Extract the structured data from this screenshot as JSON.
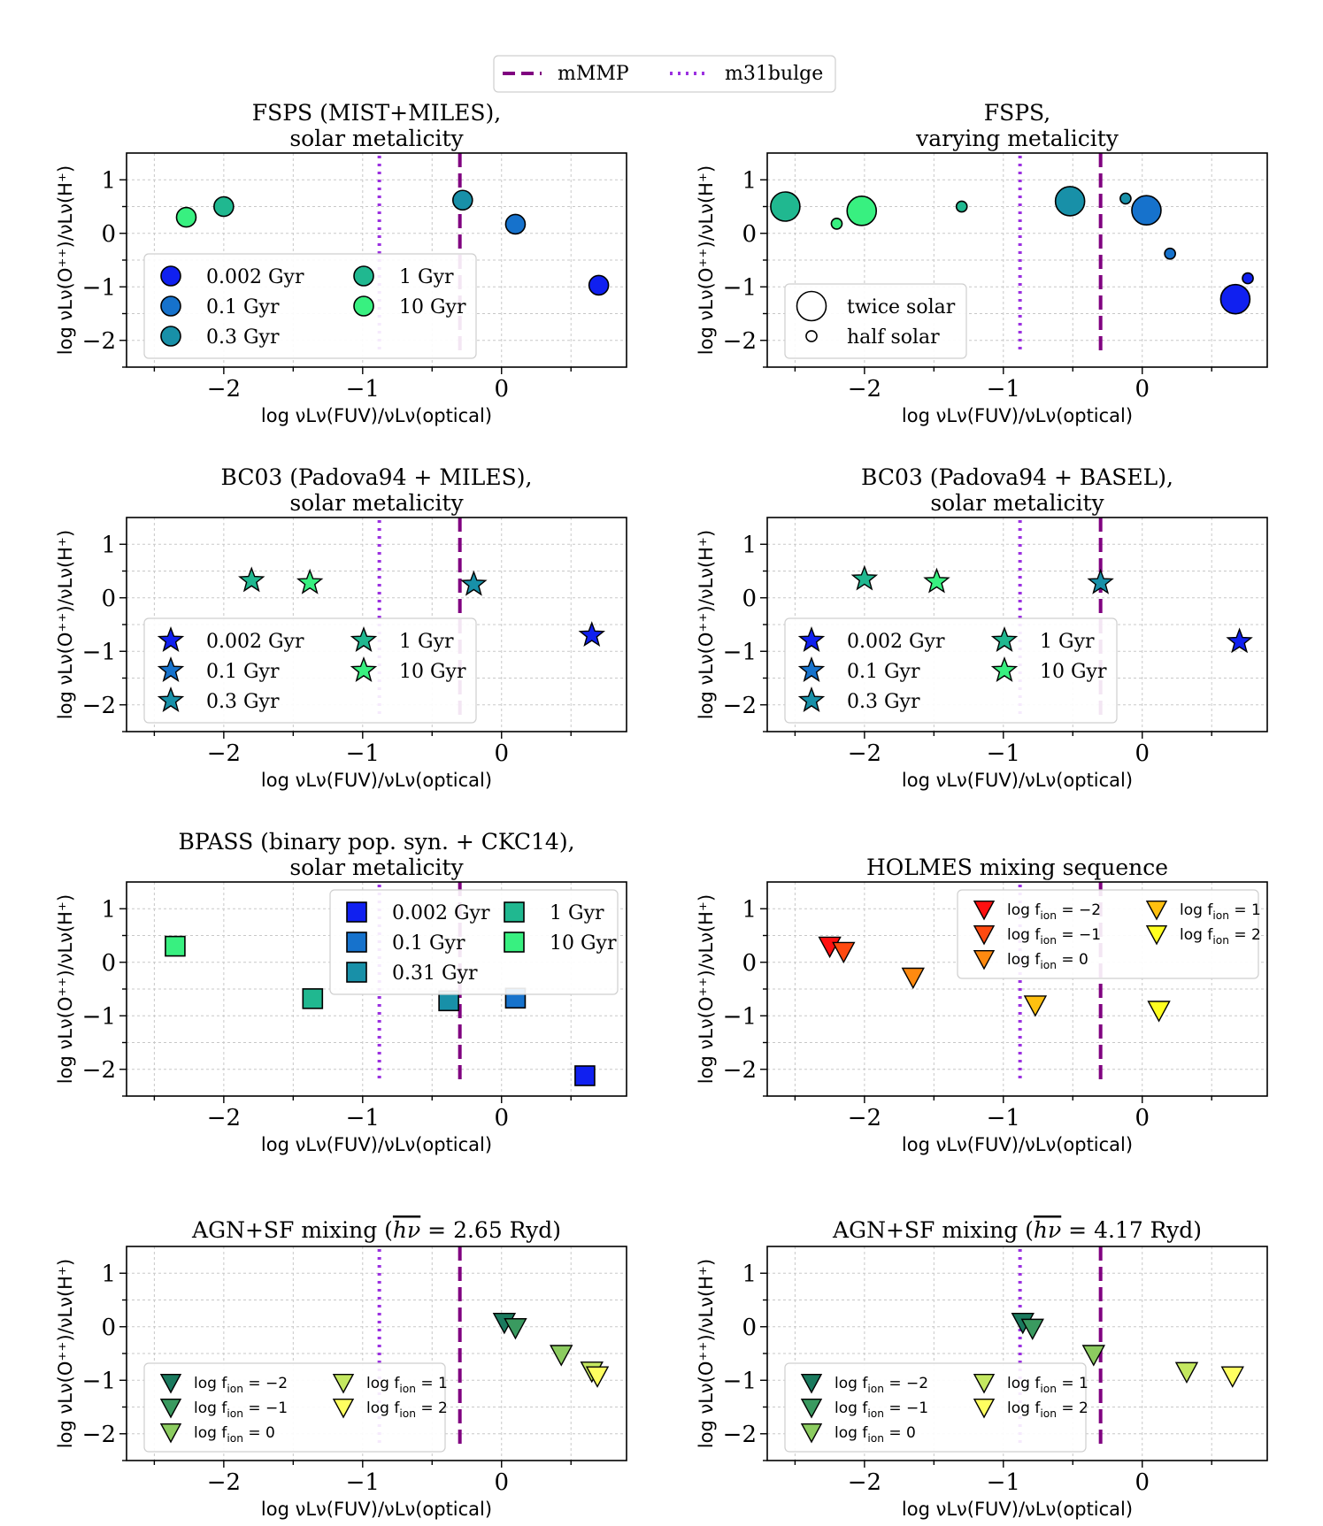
{
  "figure": {
    "legend_top": [
      {
        "label": "mMMP",
        "style": "dashed",
        "color": "#800080",
        "x": -0.3
      },
      {
        "label": "m31bulge",
        "style": "dotted",
        "color": "#9b30e0",
        "x": -0.88
      }
    ],
    "xlabel": "log νLν(FUV)/νLν(optical)",
    "ylabel": "log νLν(O⁺⁺)/νLν(H⁺)",
    "xlim": [
      -2.7,
      0.9
    ],
    "ylim": [
      -2.5,
      1.5
    ]
  },
  "chart_data": [
    {
      "type": "scatter",
      "title": [
        "FSPS (MIST+MILES),",
        "solar metalicity"
      ],
      "marker": "circle",
      "points": [
        {
          "x": 0.7,
          "y": -0.97,
          "color": "#1020f0",
          "size": 1
        },
        {
          "x": 0.1,
          "y": 0.17,
          "color": "#1672cc",
          "size": 1
        },
        {
          "x": -0.28,
          "y": 0.62,
          "color": "#1890a8",
          "size": 1
        },
        {
          "x": -2.0,
          "y": 0.5,
          "color": "#20b890",
          "size": 1
        },
        {
          "x": -2.27,
          "y": 0.3,
          "color": "#38f080",
          "size": 1
        }
      ],
      "legend": {
        "position": "lower-left",
        "cols": 2,
        "items": [
          {
            "label": "0.002 Gyr",
            "color": "#1020f0"
          },
          {
            "label": "1 Gyr",
            "color": "#20b890"
          },
          {
            "label": "0.1 Gyr",
            "color": "#1672cc"
          },
          {
            "label": "10 Gyr",
            "color": "#38f080"
          },
          {
            "label": "0.3 Gyr",
            "color": "#1890a8"
          }
        ]
      }
    },
    {
      "type": "scatter",
      "title": [
        "FSPS,",
        "varying metalicity"
      ],
      "marker": "circle",
      "points": [
        {
          "x": -2.57,
          "y": 0.5,
          "color": "#20b890",
          "size": 1.5
        },
        {
          "x": -2.2,
          "y": 0.18,
          "color": "#38f080",
          "size": 0.55
        },
        {
          "x": -2.02,
          "y": 0.42,
          "color": "#38f080",
          "size": 1.5
        },
        {
          "x": -1.3,
          "y": 0.5,
          "color": "#20b890",
          "size": 0.55
        },
        {
          "x": -0.52,
          "y": 0.6,
          "color": "#1890a8",
          "size": 1.5
        },
        {
          "x": -0.12,
          "y": 0.65,
          "color": "#1890a8",
          "size": 0.55
        },
        {
          "x": 0.03,
          "y": 0.43,
          "color": "#1672cc",
          "size": 1.5
        },
        {
          "x": 0.2,
          "y": -0.38,
          "color": "#1672cc",
          "size": 0.55
        },
        {
          "x": 0.67,
          "y": -1.23,
          "color": "#1020f0",
          "size": 1.5
        },
        {
          "x": 0.76,
          "y": -0.84,
          "color": "#1020f0",
          "size": 0.55
        }
      ],
      "legend": {
        "position": "lower-left",
        "cols": 1,
        "items": [
          {
            "label": "twice solar",
            "size": 1.5
          },
          {
            "label": "half solar",
            "size": 0.55
          }
        ]
      }
    },
    {
      "type": "scatter",
      "title": [
        "BC03 (Padova94 + MILES),",
        "solar metalicity"
      ],
      "marker": "star",
      "points": [
        {
          "x": 0.65,
          "y": -0.7,
          "color": "#1020f0",
          "size": 1
        },
        {
          "x": -0.2,
          "y": 0.25,
          "color": "#1890a8",
          "size": 1
        },
        {
          "x": -1.8,
          "y": 0.32,
          "color": "#20b890",
          "size": 1
        },
        {
          "x": -1.38,
          "y": 0.28,
          "color": "#38f080",
          "size": 1
        }
      ],
      "legend": {
        "position": "lower-left",
        "cols": 2,
        "items": [
          {
            "label": "0.002 Gyr",
            "color": "#1020f0"
          },
          {
            "label": "1 Gyr",
            "color": "#20b890"
          },
          {
            "label": "0.1 Gyr",
            "color": "#1672cc"
          },
          {
            "label": "10 Gyr",
            "color": "#38f080"
          },
          {
            "label": "0.3 Gyr",
            "color": "#1890a8"
          }
        ]
      }
    },
    {
      "type": "scatter",
      "title": [
        "BC03 (Padova94 + BASEL),",
        "solar metalicity"
      ],
      "marker": "star",
      "points": [
        {
          "x": 0.7,
          "y": -0.82,
          "color": "#1020f0",
          "size": 1
        },
        {
          "x": -0.3,
          "y": 0.28,
          "color": "#1890a8",
          "size": 1
        },
        {
          "x": -2.0,
          "y": 0.35,
          "color": "#20b890",
          "size": 1
        },
        {
          "x": -1.48,
          "y": 0.3,
          "color": "#38f080",
          "size": 1
        }
      ],
      "legend": {
        "position": "lower-left",
        "cols": 2,
        "items": [
          {
            "label": "0.002 Gyr",
            "color": "#1020f0"
          },
          {
            "label": "1 Gyr",
            "color": "#20b890"
          },
          {
            "label": "0.1 Gyr",
            "color": "#1672cc"
          },
          {
            "label": "10 Gyr",
            "color": "#38f080"
          },
          {
            "label": "0.3 Gyr",
            "color": "#1890a8"
          }
        ]
      }
    },
    {
      "type": "scatter",
      "title": [
        "BPASS (binary pop. syn. + CKC14),",
        "solar metalicity"
      ],
      "marker": "square",
      "points": [
        {
          "x": 0.6,
          "y": -2.12,
          "color": "#1020f0",
          "size": 1
        },
        {
          "x": 0.1,
          "y": -0.67,
          "color": "#1672cc",
          "size": 1
        },
        {
          "x": -0.38,
          "y": -0.72,
          "color": "#1890a8",
          "size": 1
        },
        {
          "x": -1.36,
          "y": -0.68,
          "color": "#20b890",
          "size": 1
        },
        {
          "x": -2.35,
          "y": 0.3,
          "color": "#38f080",
          "size": 1
        }
      ],
      "legend": {
        "position": "upper-right",
        "cols": 2,
        "items": [
          {
            "label": "0.002 Gyr",
            "color": "#1020f0"
          },
          {
            "label": "1 Gyr",
            "color": "#20b890"
          },
          {
            "label": "0.1 Gyr",
            "color": "#1672cc"
          },
          {
            "label": "10 Gyr",
            "color": "#38f080"
          },
          {
            "label": "0.31 Gyr",
            "color": "#1890a8"
          }
        ]
      }
    },
    {
      "type": "scatter",
      "title": [
        "HOLMES mixing sequence"
      ],
      "marker": "triangle_down",
      "points": [
        {
          "x": -2.25,
          "y": 0.3,
          "color": "#ff1010",
          "size": 1
        },
        {
          "x": -2.15,
          "y": 0.2,
          "color": "#ff4a10",
          "size": 1
        },
        {
          "x": -1.65,
          "y": -0.28,
          "color": "#ff8a10",
          "size": 1
        },
        {
          "x": -0.77,
          "y": -0.8,
          "color": "#ffc010",
          "size": 1
        },
        {
          "x": 0.12,
          "y": -0.9,
          "color": "#ffff20",
          "size": 1
        }
      ],
      "legend": {
        "position": "upper-right",
        "cols": 2,
        "items": [
          {
            "label": "log f",
            "sub": "ion",
            "val": " = −2",
            "color": "#ff1010"
          },
          {
            "label": "log f",
            "sub": "ion",
            "val": " = 1",
            "color": "#ffc010"
          },
          {
            "label": "log f",
            "sub": "ion",
            "val": " = −1",
            "color": "#ff4a10"
          },
          {
            "label": "log f",
            "sub": "ion",
            "val": " = 2",
            "color": "#ffff20"
          },
          {
            "label": "log f",
            "sub": "ion",
            "val": " = 0",
            "color": "#ff8a10"
          }
        ]
      }
    },
    {
      "type": "scatter",
      "title": [
        "AGN+SF mixing (",
        "hν",
        " = 2.65 Ryd)"
      ],
      "marker": "triangle_down",
      "points": [
        {
          "x": 0.02,
          "y": 0.08,
          "color": "#1a7a5e",
          "size": 1
        },
        {
          "x": 0.1,
          "y": -0.02,
          "color": "#3a9a60",
          "size": 1
        },
        {
          "x": 0.43,
          "y": -0.52,
          "color": "#8ccc60",
          "size": 1
        },
        {
          "x": 0.65,
          "y": -0.83,
          "color": "#c4e860",
          "size": 1
        },
        {
          "x": 0.69,
          "y": -0.92,
          "color": "#ffff60",
          "size": 1
        }
      ],
      "legend": {
        "position": "lower-left",
        "cols": 2,
        "items": [
          {
            "label": "log f",
            "sub": "ion",
            "val": " = −2",
            "color": "#1a7a5e"
          },
          {
            "label": "log f",
            "sub": "ion",
            "val": " = 1",
            "color": "#c4e860"
          },
          {
            "label": "log f",
            "sub": "ion",
            "val": " = −1",
            "color": "#3a9a60"
          },
          {
            "label": "log f",
            "sub": "ion",
            "val": " = 2",
            "color": "#ffff60"
          },
          {
            "label": "log f",
            "sub": "ion",
            "val": " = 0",
            "color": "#8ccc60"
          }
        ]
      }
    },
    {
      "type": "scatter",
      "title": [
        "AGN+SF mixing (",
        "hν",
        " = 4.17 Ryd)"
      ],
      "marker": "triangle_down",
      "points": [
        {
          "x": -0.86,
          "y": 0.08,
          "color": "#1a7a5e",
          "size": 1
        },
        {
          "x": -0.79,
          "y": -0.03,
          "color": "#3a9a60",
          "size": 1
        },
        {
          "x": -0.35,
          "y": -0.52,
          "color": "#8ccc60",
          "size": 1
        },
        {
          "x": 0.32,
          "y": -0.84,
          "color": "#c4e860",
          "size": 1
        },
        {
          "x": 0.65,
          "y": -0.92,
          "color": "#ffff60",
          "size": 1
        }
      ],
      "legend": {
        "position": "lower-left",
        "cols": 2,
        "items": [
          {
            "label": "log f",
            "sub": "ion",
            "val": " = −2",
            "color": "#1a7a5e"
          },
          {
            "label": "log f",
            "sub": "ion",
            "val": " = 1",
            "color": "#c4e860"
          },
          {
            "label": "log f",
            "sub": "ion",
            "val": " = −1",
            "color": "#3a9a60"
          },
          {
            "label": "log f",
            "sub": "ion",
            "val": " = 2",
            "color": "#ffff60"
          },
          {
            "label": "log f",
            "sub": "ion",
            "val": " = 0",
            "color": "#8ccc60"
          }
        ]
      }
    }
  ]
}
